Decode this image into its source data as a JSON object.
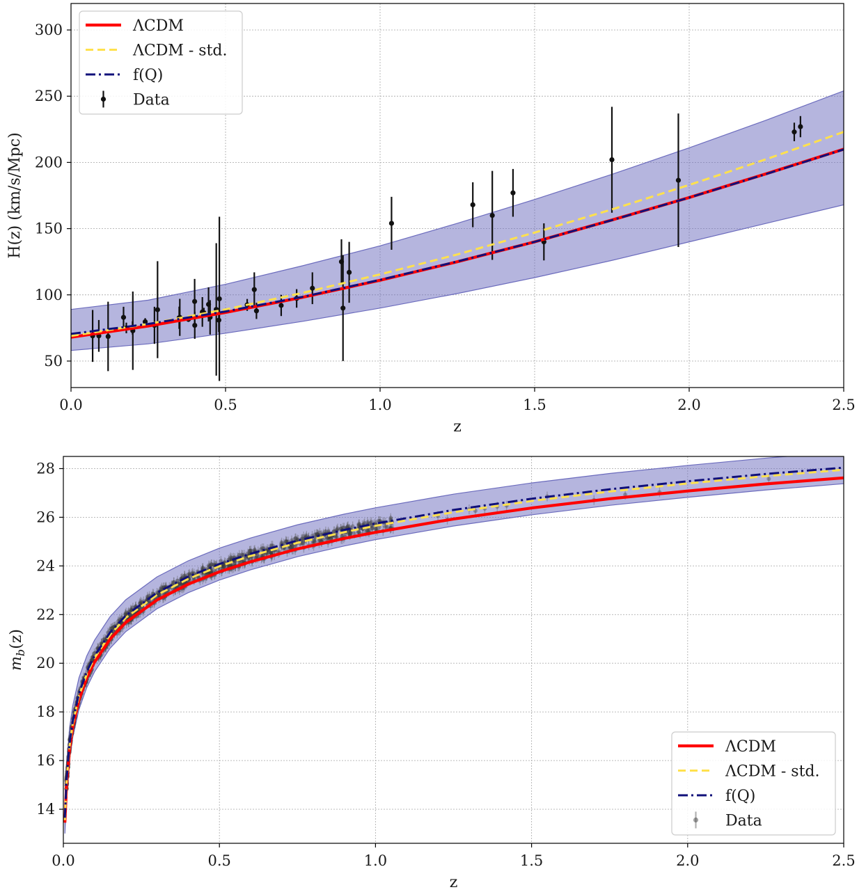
{
  "colors": {
    "lcdm": "#ff0000",
    "lcdm_std": "#ffe14d",
    "fq": "#10107a",
    "band": "#6b6bbd",
    "data_top": "#111111",
    "data_bottom": "#555555"
  },
  "chart_data": [
    {
      "type": "line",
      "xlabel": "z",
      "ylabel": "H(z) (km/s/Mpc)",
      "xlim": [
        0,
        2.5
      ],
      "ylim": [
        30,
        320
      ],
      "xticks": [
        "0.0",
        "0.5",
        "1.0",
        "1.5",
        "2.0",
        "2.5"
      ],
      "yticks": [
        "50",
        "100",
        "150",
        "200",
        "250",
        "300"
      ],
      "grid": true,
      "legend": {
        "position": "top-left",
        "entries": [
          "ΛCDM",
          "ΛCDM - std.",
          "f(Q)",
          "Data"
        ]
      },
      "series": [
        {
          "name": "ΛCDM",
          "style": "solid",
          "x": [
            0,
            0.25,
            0.5,
            0.75,
            1.0,
            1.25,
            1.5,
            1.75,
            2.0,
            2.25,
            2.5
          ],
          "y": [
            68,
            76.5,
            86.7,
            98.2,
            111,
            125,
            140,
            156.5,
            173.5,
            191.5,
            210
          ]
        },
        {
          "name": "ΛCDM - std.",
          "style": "dashed",
          "x": [
            0,
            0.25,
            0.5,
            0.75,
            1.0,
            1.25,
            1.5,
            1.75,
            2.0,
            2.25,
            2.5
          ],
          "y": [
            69,
            78,
            89,
            101.5,
            115.5,
            130.5,
            147,
            164.5,
            183,
            202.5,
            223
          ]
        },
        {
          "name": "f(Q)",
          "style": "dashdot",
          "x": [
            0,
            0.25,
            0.5,
            0.75,
            1.0,
            1.25,
            1.5,
            1.75,
            2.0,
            2.25,
            2.5
          ],
          "y": [
            70.5,
            78,
            87.5,
            98.5,
            111.3,
            125.2,
            140,
            156.4,
            173.4,
            191.3,
            209.8
          ]
        }
      ],
      "band": {
        "x": [
          0,
          0.25,
          0.5,
          0.75,
          1.0,
          1.25,
          1.5,
          1.75,
          2.0,
          2.25,
          2.5
        ],
        "lower": [
          58,
          63,
          71,
          80,
          90,
          101,
          113,
          126,
          140,
          154,
          168
        ],
        "upper": [
          89,
          96,
          108,
          122,
          137,
          154,
          172,
          191,
          211,
          232,
          254
        ]
      },
      "data": [
        {
          "x": 0.07,
          "y": 69,
          "err": 19.6
        },
        {
          "x": 0.09,
          "y": 69,
          "err": 12
        },
        {
          "x": 0.12,
          "y": 68.6,
          "err": 26.2
        },
        {
          "x": 0.17,
          "y": 83,
          "err": 8
        },
        {
          "x": 0.179,
          "y": 75,
          "err": 4
        },
        {
          "x": 0.199,
          "y": 75,
          "err": 5
        },
        {
          "x": 0.2,
          "y": 72.9,
          "err": 29.6
        },
        {
          "x": 0.24,
          "y": 79.7,
          "err": 2.7
        },
        {
          "x": 0.27,
          "y": 77,
          "err": 14
        },
        {
          "x": 0.28,
          "y": 88.8,
          "err": 36.6
        },
        {
          "x": 0.35,
          "y": 82.7,
          "err": 8.4
        },
        {
          "x": 0.352,
          "y": 83,
          "err": 14
        },
        {
          "x": 0.38,
          "y": 81.5,
          "err": 1.9
        },
        {
          "x": 0.4,
          "y": 95,
          "err": 17
        },
        {
          "x": 0.4004,
          "y": 77,
          "err": 10.2
        },
        {
          "x": 0.425,
          "y": 87.1,
          "err": 11.2
        },
        {
          "x": 0.43,
          "y": 86.5,
          "err": 3.7
        },
        {
          "x": 0.445,
          "y": 92.8,
          "err": 12.9
        },
        {
          "x": 0.45,
          "y": 83,
          "err": 13
        },
        {
          "x": 0.47,
          "y": 89,
          "err": 50
        },
        {
          "x": 0.4783,
          "y": 80.9,
          "err": 9
        },
        {
          "x": 0.48,
          "y": 97,
          "err": 62
        },
        {
          "x": 0.57,
          "y": 92.4,
          "err": 4.5
        },
        {
          "x": 0.593,
          "y": 104,
          "err": 13
        },
        {
          "x": 0.6,
          "y": 87.9,
          "err": 6.1
        },
        {
          "x": 0.68,
          "y": 92,
          "err": 8
        },
        {
          "x": 0.73,
          "y": 97.3,
          "err": 7
        },
        {
          "x": 0.781,
          "y": 105,
          "err": 12
        },
        {
          "x": 0.875,
          "y": 125,
          "err": 17
        },
        {
          "x": 0.88,
          "y": 90,
          "err": 40
        },
        {
          "x": 0.9,
          "y": 117,
          "err": 23
        },
        {
          "x": 1.037,
          "y": 154,
          "err": 20
        },
        {
          "x": 1.3,
          "y": 168,
          "err": 17
        },
        {
          "x": 1.363,
          "y": 160,
          "err": 33.6
        },
        {
          "x": 1.43,
          "y": 177,
          "err": 18
        },
        {
          "x": 1.53,
          "y": 140,
          "err": 14
        },
        {
          "x": 1.75,
          "y": 202,
          "err": 40
        },
        {
          "x": 1.965,
          "y": 186.5,
          "err": 50.4
        },
        {
          "x": 2.34,
          "y": 223,
          "err": 7
        },
        {
          "x": 2.36,
          "y": 227,
          "err": 8
        }
      ]
    },
    {
      "type": "line",
      "xlabel": "z",
      "ylabel": "m_b(z)",
      "xlim": [
        0,
        2.5
      ],
      "ylim": [
        12.6,
        28.5
      ],
      "xticks": [
        "0.0",
        "0.5",
        "1.0",
        "1.5",
        "2.0",
        "2.5"
      ],
      "yticks": [
        "14",
        "16",
        "18",
        "20",
        "22",
        "24",
        "26",
        "28"
      ],
      "grid": true,
      "legend": {
        "position": "bottom-right",
        "entries": [
          "ΛCDM",
          "ΛCDM - std.",
          "f(Q)",
          "Data"
        ]
      },
      "series": [
        {
          "name": "ΛCDM",
          "style": "solid",
          "x": [
            0.005,
            0.01,
            0.02,
            0.03,
            0.05,
            0.075,
            0.1,
            0.15,
            0.2,
            0.3,
            0.4,
            0.5,
            0.6,
            0.75,
            0.9,
            1.0,
            1.25,
            1.5,
            1.75,
            2.0,
            2.25,
            2.5
          ],
          "y": [
            13.45,
            14.95,
            16.48,
            17.38,
            18.5,
            19.4,
            20.05,
            21.0,
            21.68,
            22.6,
            23.25,
            23.76,
            24.17,
            24.7,
            25.13,
            25.38,
            25.93,
            26.38,
            26.76,
            27.08,
            27.37,
            27.62
          ]
        },
        {
          "name": "ΛCDM - std.",
          "style": "dashed",
          "x": [
            0.005,
            0.01,
            0.02,
            0.03,
            0.05,
            0.075,
            0.1,
            0.15,
            0.2,
            0.3,
            0.4,
            0.5,
            0.6,
            0.75,
            0.9,
            1.0,
            1.25,
            1.5,
            1.75,
            2.0,
            2.25,
            2.5
          ],
          "y": [
            13.55,
            15.05,
            16.6,
            17.5,
            18.65,
            19.55,
            20.22,
            21.18,
            21.87,
            22.81,
            23.47,
            23.99,
            24.41,
            24.95,
            25.39,
            25.65,
            26.21,
            26.67,
            27.06,
            27.39,
            27.69,
            27.95
          ]
        },
        {
          "name": "f(Q)",
          "style": "dashdot",
          "x": [
            0.005,
            0.01,
            0.02,
            0.03,
            0.05,
            0.075,
            0.1,
            0.15,
            0.2,
            0.3,
            0.4,
            0.5,
            0.6,
            0.75,
            0.9,
            1.0,
            1.25,
            1.5,
            1.75,
            2.0,
            2.25,
            2.5
          ],
          "y": [
            13.65,
            15.15,
            16.7,
            17.6,
            18.75,
            19.65,
            20.3,
            21.27,
            21.96,
            22.9,
            23.56,
            24.08,
            24.5,
            25.04,
            25.48,
            25.74,
            26.3,
            26.76,
            27.15,
            27.48,
            27.78,
            28.04
          ]
        }
      ],
      "band": {
        "x": [
          0.005,
          0.01,
          0.02,
          0.03,
          0.05,
          0.075,
          0.1,
          0.15,
          0.2,
          0.3,
          0.4,
          0.5,
          0.6,
          0.75,
          0.9,
          1.0,
          1.25,
          1.5,
          1.75,
          2.0,
          2.25,
          2.5
        ],
        "lower": [
          13.0,
          14.5,
          16.05,
          16.95,
          18.1,
          19.0,
          19.65,
          20.62,
          21.3,
          22.24,
          22.9,
          23.42,
          23.84,
          24.38,
          24.82,
          25.08,
          25.64,
          26.1,
          26.49,
          26.82,
          27.12,
          27.38
        ],
        "upper": [
          14.3,
          15.8,
          17.35,
          18.25,
          19.4,
          20.3,
          20.95,
          21.92,
          22.61,
          23.55,
          24.21,
          24.73,
          25.15,
          25.69,
          26.13,
          26.39,
          26.95,
          27.41,
          27.8,
          28.13,
          28.43,
          28.69
        ]
      }
    }
  ]
}
